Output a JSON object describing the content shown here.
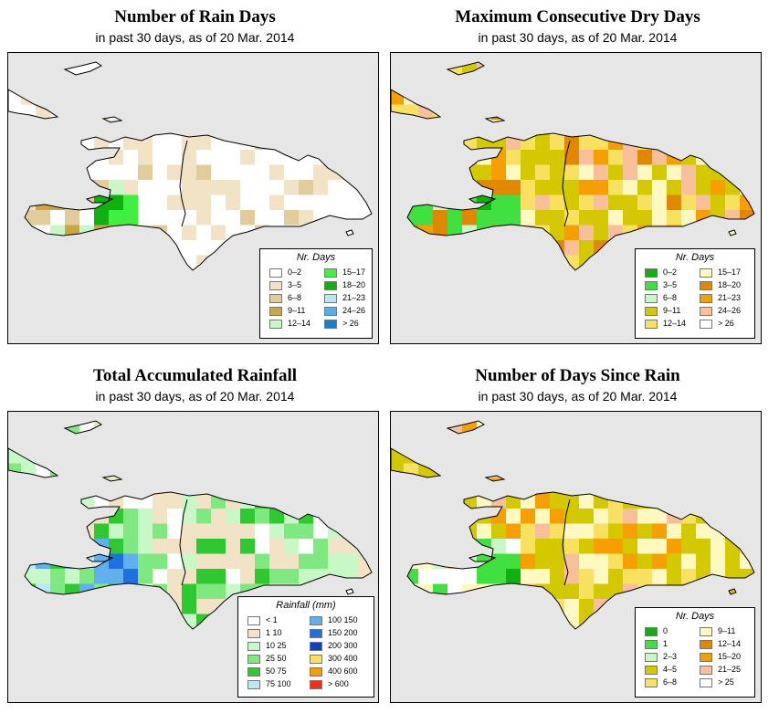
{
  "panels": [
    {
      "id": "rain_days",
      "title": "Number of Rain Days",
      "subtitle": "in past 30 days, as of  20 Mar. 2014",
      "legend": {
        "title": "Nr. Days",
        "items": [
          {
            "label": "0–2",
            "color": "#ffffff"
          },
          {
            "label": "3–5",
            "color": "#f2e3c7"
          },
          {
            "label": "6–8",
            "color": "#e3cc9c"
          },
          {
            "label": "9–11",
            "color": "#c9a646"
          },
          {
            "label": "12–14",
            "color": "#c8f8c8"
          },
          {
            "label": "15–17",
            "color": "#40f040"
          },
          {
            "label": "18–20",
            "color": "#10b010"
          },
          {
            "label": "21–23",
            "color": "#b8e8f8"
          },
          {
            "label": "24–26",
            "color": "#50b0f0"
          },
          {
            "label": "> 26",
            "color": "#1080d0"
          }
        ]
      }
    },
    {
      "id": "max_dry_days",
      "title": "Maximum Consecutive Dry Days",
      "subtitle": "in past 30 days, as of  20 Mar. 2014",
      "legend": {
        "title": "Nr. Days",
        "items": [
          {
            "label": "0–2",
            "color": "#10b010"
          },
          {
            "label": "3–5",
            "color": "#40e040"
          },
          {
            "label": "6–8",
            "color": "#c8f8c8"
          },
          {
            "label": "9–11",
            "color": "#d4c800"
          },
          {
            "label": "12–14",
            "color": "#f8e060"
          },
          {
            "label": "15–17",
            "color": "#fff8c0"
          },
          {
            "label": "18–20",
            "color": "#e08800"
          },
          {
            "label": "21–23",
            "color": "#f5a000"
          },
          {
            "label": "24–26",
            "color": "#f8c09a"
          },
          {
            "label": "> 26",
            "color": "#ffffff"
          }
        ]
      }
    },
    {
      "id": "total_rainfall",
      "title": "Total Accumulated Rainfall",
      "subtitle": "in past 30 days, as of  20 Mar. 2014",
      "legend": {
        "title": "Rainfall (mm)",
        "items": [
          {
            "label": "< 1",
            "color": "#ffffff"
          },
          {
            "label": "1    10",
            "color": "#f2e3c7"
          },
          {
            "label": "10    25",
            "color": "#c8f8c8"
          },
          {
            "label": "25    50",
            "color": "#80e880"
          },
          {
            "label": "50    75",
            "color": "#30c830"
          },
          {
            "label": "75  100",
            "color": "#b8e8f8"
          },
          {
            "label": "100  150",
            "color": "#60b0f0"
          },
          {
            "label": "150  200",
            "color": "#2070e0"
          },
          {
            "label": "200  300",
            "color": "#1040c0"
          },
          {
            "label": "300  400",
            "color": "#f8e060"
          },
          {
            "label": "400  600",
            "color": "#f5a000"
          },
          {
            "label": "> 600",
            "color": "#f03010"
          }
        ]
      }
    },
    {
      "id": "days_since_rain",
      "title": "Number of Days Since Rain",
      "subtitle": "in past 30 days, as of  20 Mar. 2014",
      "legend": {
        "title": "Nr. Days",
        "items": [
          {
            "label": "0",
            "color": "#10b010"
          },
          {
            "label": "1",
            "color": "#40e040"
          },
          {
            "label": "2–3",
            "color": "#c8f8c8"
          },
          {
            "label": "4–5",
            "color": "#d4c800"
          },
          {
            "label": "6–8",
            "color": "#f8e060"
          },
          {
            "label": "9–11",
            "color": "#fff8c0"
          },
          {
            "label": "12–14",
            "color": "#e08800"
          },
          {
            "label": "15–20",
            "color": "#f5a000"
          },
          {
            "label": "21–25",
            "color": "#f8c09a"
          },
          {
            "label": "> 25",
            "color": "#ffffff"
          }
        ]
      }
    }
  ],
  "colors": {
    "ocean": "#e6e6e6",
    "coastline": "#000000"
  }
}
